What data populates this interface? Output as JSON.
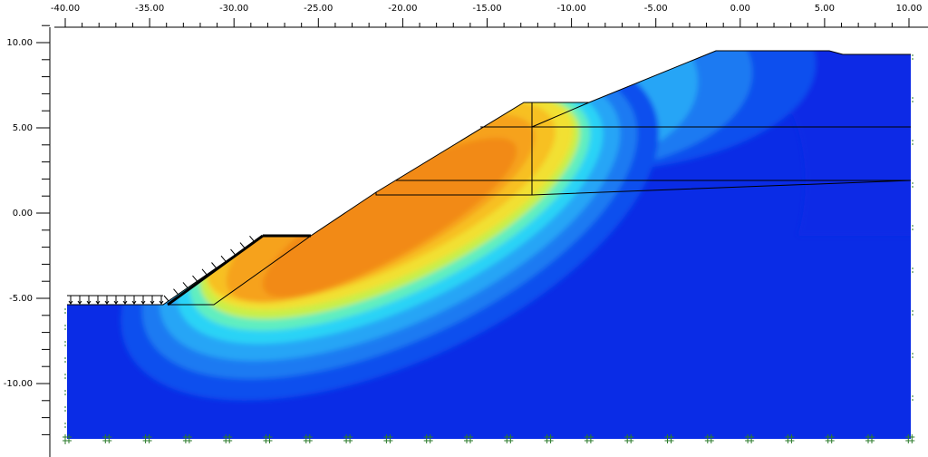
{
  "rulers": {
    "top": [
      "-40.00",
      "-35.00",
      "-30.00",
      "-25.00",
      "-20.00",
      "-15.00",
      "-10.00",
      "-5.00",
      "0.00",
      "5.00",
      "10.00"
    ],
    "left": [
      "10.00",
      "5.00",
      "0.00",
      "-5.00",
      "-10.00"
    ]
  }
}
